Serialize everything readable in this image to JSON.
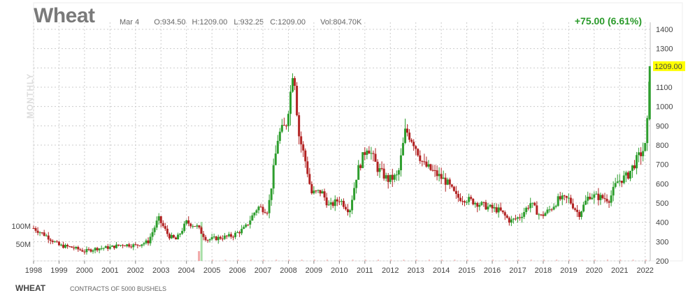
{
  "header": {
    "symbol": "Wheat",
    "date": "Mar 4",
    "open": "O:934.50",
    "high": "H:1209.00",
    "low": "L:932.25",
    "close": "C:1209.00",
    "volume": "Vol:804.70K",
    "change": "+75.00 (6.61%)",
    "period": "MONTHLY"
  },
  "footer": {
    "label": "WHEAT",
    "sub": "CONTRACTS OF 5000 BUSHELS"
  },
  "colors": {
    "up": "#2e9e2e",
    "down": "#b22222",
    "last_price_highlight": "#ffff00",
    "change": "#2a9a2a"
  },
  "chart_data": {
    "type": "candlestick",
    "title": "Wheat",
    "xlabel": "",
    "ylabel": "",
    "ylim": [
      200,
      1400
    ],
    "yticks": [
      200,
      300,
      400,
      500,
      600,
      700,
      800,
      900,
      1000,
      1100,
      1200,
      1300,
      1400
    ],
    "xlim": [
      1998.0,
      2022.2
    ],
    "xticks": [
      "1998",
      "1999",
      "2000",
      "2001",
      "2002",
      "2003",
      "2004",
      "2005",
      "2006",
      "2007",
      "2008",
      "2009",
      "2010",
      "2011",
      "2012",
      "2013",
      "2014",
      "2015",
      "2016",
      "2017",
      "2018",
      "2019",
      "2020",
      "2021",
      "2022"
    ],
    "last_price": 1209.0,
    "last_price_label": "1209.00",
    "volume_ticks": [
      "100M",
      "50M"
    ],
    "grid": true,
    "series": [
      {
        "x": 1998.0,
        "close": 370
      },
      {
        "x": 1998.5,
        "close": 330
      },
      {
        "x": 1999.0,
        "close": 280
      },
      {
        "x": 1999.5,
        "close": 270
      },
      {
        "x": 2000.0,
        "close": 250
      },
      {
        "x": 2000.5,
        "close": 265
      },
      {
        "x": 2001.0,
        "close": 270
      },
      {
        "x": 2001.5,
        "close": 285
      },
      {
        "x": 2002.0,
        "close": 280
      },
      {
        "x": 2002.5,
        "close": 300
      },
      {
        "x": 2002.9,
        "close": 420
      },
      {
        "x": 2003.3,
        "close": 330
      },
      {
        "x": 2003.6,
        "close": 310
      },
      {
        "x": 2004.0,
        "close": 400
      },
      {
        "x": 2004.4,
        "close": 380
      },
      {
        "x": 2004.8,
        "close": 310
      },
      {
        "x": 2005.3,
        "close": 320
      },
      {
        "x": 2005.8,
        "close": 330
      },
      {
        "x": 2006.3,
        "close": 370
      },
      {
        "x": 2006.8,
        "close": 480
      },
      {
        "x": 2007.2,
        "close": 460
      },
      {
        "x": 2007.6,
        "close": 850
      },
      {
        "x": 2007.9,
        "close": 900
      },
      {
        "x": 2008.1,
        "close": 1090
      },
      {
        "x": 2008.2,
        "close": 1230
      },
      {
        "x": 2008.4,
        "close": 860
      },
      {
        "x": 2008.7,
        "close": 700
      },
      {
        "x": 2008.9,
        "close": 550
      },
      {
        "x": 2009.3,
        "close": 560
      },
      {
        "x": 2009.6,
        "close": 480
      },
      {
        "x": 2010.0,
        "close": 520
      },
      {
        "x": 2010.4,
        "close": 460
      },
      {
        "x": 2010.7,
        "close": 660
      },
      {
        "x": 2011.1,
        "close": 800
      },
      {
        "x": 2011.5,
        "close": 680
      },
      {
        "x": 2011.9,
        "close": 620
      },
      {
        "x": 2012.3,
        "close": 640
      },
      {
        "x": 2012.6,
        "close": 880
      },
      {
        "x": 2012.9,
        "close": 820
      },
      {
        "x": 2013.3,
        "close": 700
      },
      {
        "x": 2013.7,
        "close": 660
      },
      {
        "x": 2014.2,
        "close": 610
      },
      {
        "x": 2014.6,
        "close": 530
      },
      {
        "x": 2015.0,
        "close": 520
      },
      {
        "x": 2015.4,
        "close": 500
      },
      {
        "x": 2015.8,
        "close": 480
      },
      {
        "x": 2016.3,
        "close": 460
      },
      {
        "x": 2016.7,
        "close": 405
      },
      {
        "x": 2017.1,
        "close": 430
      },
      {
        "x": 2017.5,
        "close": 500
      },
      {
        "x": 2017.9,
        "close": 430
      },
      {
        "x": 2018.3,
        "close": 470
      },
      {
        "x": 2018.6,
        "close": 520
      },
      {
        "x": 2019.0,
        "close": 520
      },
      {
        "x": 2019.4,
        "close": 440
      },
      {
        "x": 2019.8,
        "close": 540
      },
      {
        "x": 2020.2,
        "close": 530
      },
      {
        "x": 2020.6,
        "close": 520
      },
      {
        "x": 2020.9,
        "close": 610
      },
      {
        "x": 2021.3,
        "close": 640
      },
      {
        "x": 2021.7,
        "close": 730
      },
      {
        "x": 2022.0,
        "close": 790
      },
      {
        "x": 2022.1,
        "close": 934
      },
      {
        "x": 2022.18,
        "close": 1209
      }
    ]
  }
}
